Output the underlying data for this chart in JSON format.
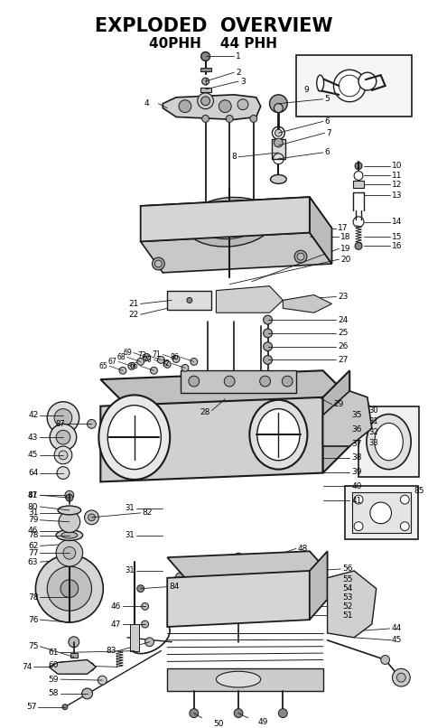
{
  "title": "EXPLODED  OVERVIEW",
  "subtitle": "40PHH    44 PHH",
  "title_fontsize": 15,
  "subtitle_fontsize": 11,
  "bg_color": "#ffffff",
  "text_color": "#000000",
  "line_color": "#000000",
  "fig_width": 4.74,
  "fig_height": 8.06,
  "dpi": 100
}
